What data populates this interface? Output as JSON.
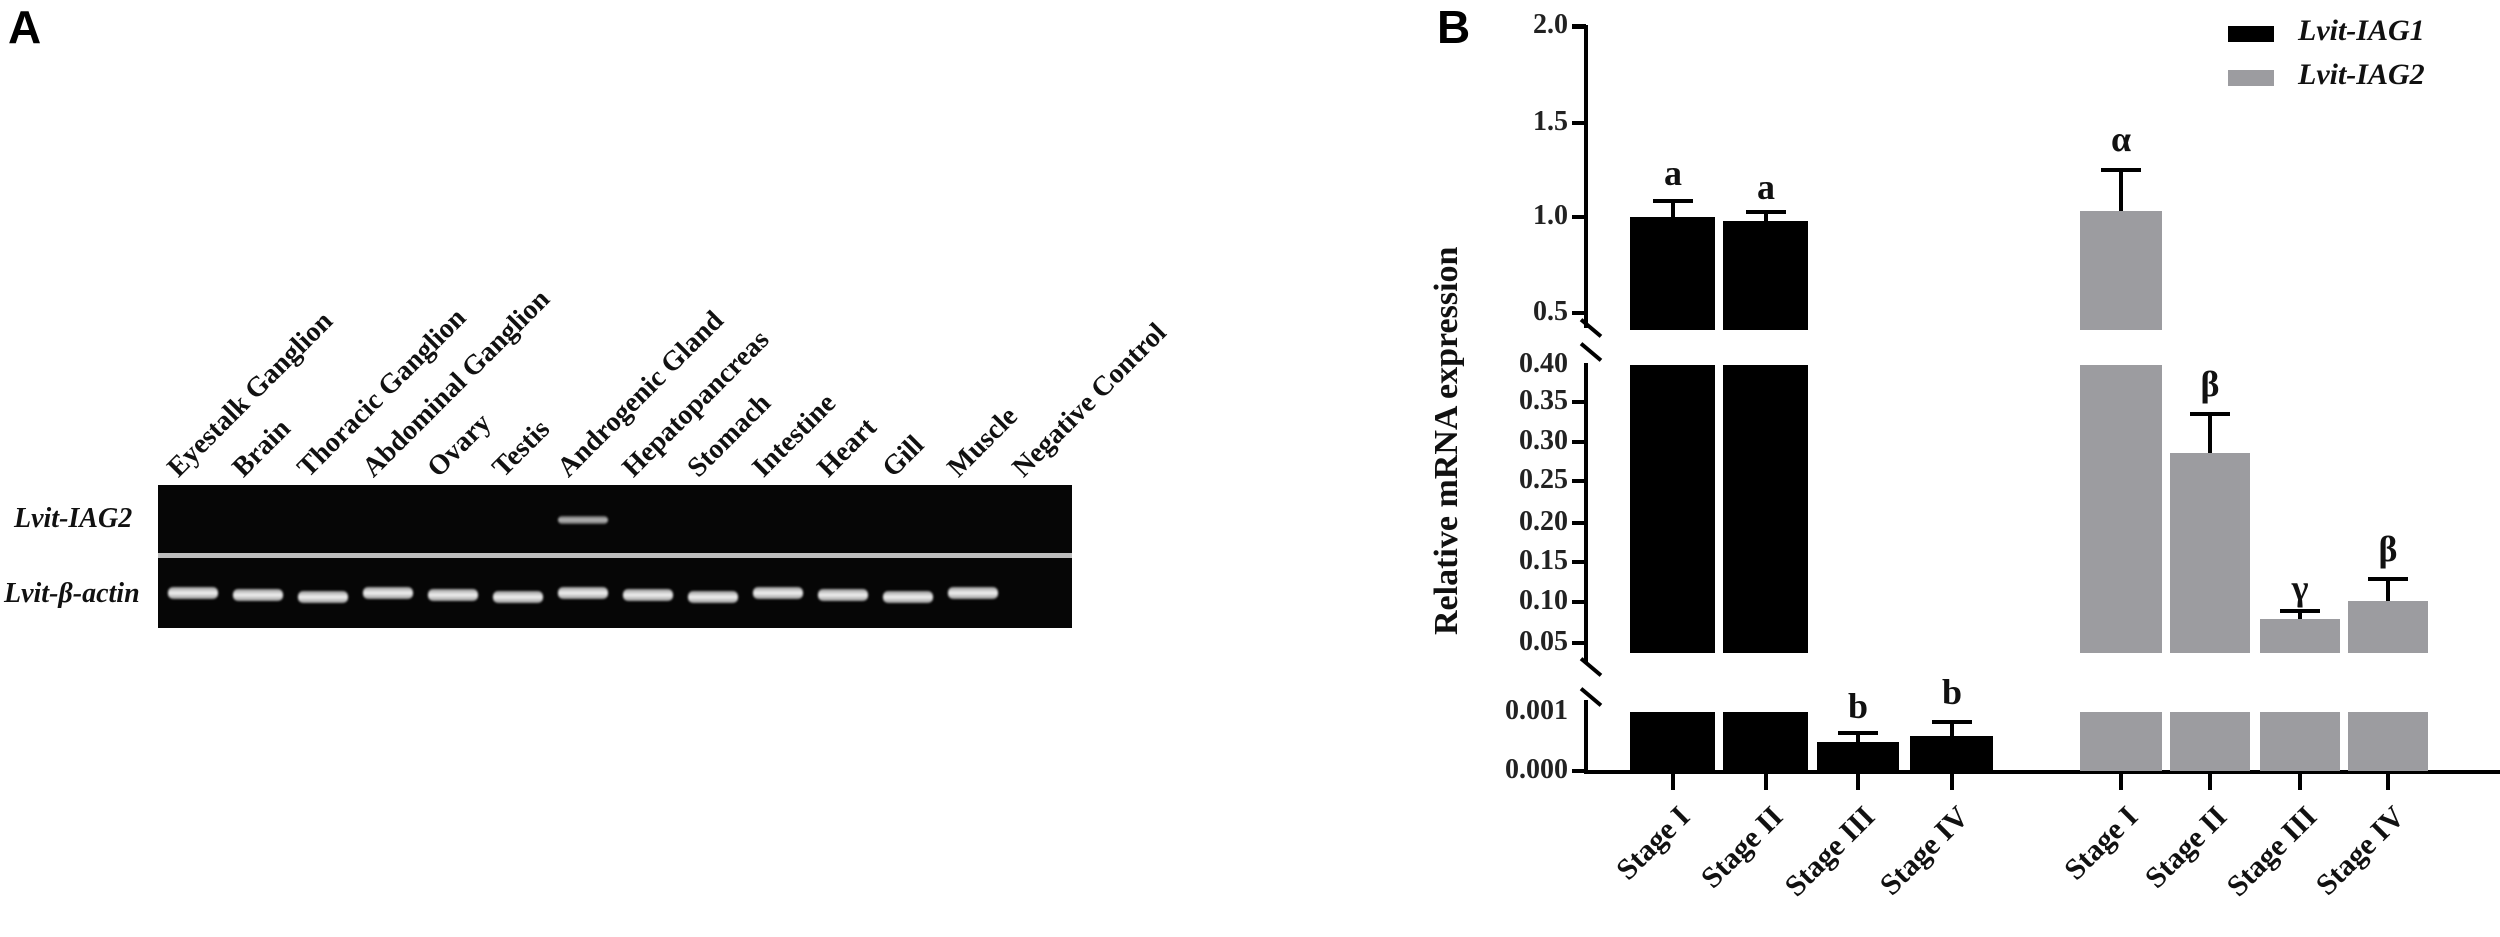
{
  "panel_a": {
    "letter": "A",
    "lanes": [
      "Eyestalk Ganglion",
      "Brain",
      "Thoracic Ganglion",
      "Abdominal Ganglion",
      "Ovary",
      "Testis",
      "Androgenic Gland",
      "Hepatopancreas",
      "Stomach",
      "Intestine",
      "Heart",
      "Gill",
      "Muscle",
      "Negative Control"
    ],
    "rows": [
      {
        "label": "Lvit-IAG2",
        "bands": [
          0,
          0,
          0,
          0,
          0,
          0,
          1,
          0,
          0,
          0,
          0,
          0,
          0,
          0
        ]
      },
      {
        "label": "Lvit-β-actin",
        "bands": [
          1,
          1,
          1,
          1,
          1,
          1,
          1,
          1,
          1,
          1,
          1,
          1,
          1,
          0
        ]
      }
    ]
  },
  "panel_b": {
    "letter": "B",
    "ylabel": "Relative mRNA expression",
    "yticks_upper": [
      "2.0",
      "1.5",
      "1.0",
      "0.5"
    ],
    "yticks_middle": [
      "0.40",
      "0.35",
      "0.30",
      "0.25",
      "0.20",
      "0.15",
      "0.10",
      "0.05"
    ],
    "yticks_lower": [
      "0.001",
      "0.000"
    ],
    "legend": [
      {
        "label": "Lvit-IAG1",
        "color": "#000000"
      },
      {
        "label": "Lvit-IAG2",
        "color": "#9c9ca0"
      }
    ],
    "xlabels": [
      "Stage I",
      "Stage II",
      "Stage III",
      "Stage IV",
      "Stage I",
      "Stage II",
      "Stage III",
      "Stage IV"
    ],
    "sig": [
      "a",
      "a",
      "b",
      "b",
      "α",
      "β",
      "γ",
      "β"
    ]
  },
  "chart_data": [
    {
      "type": "table",
      "title": "RT-PCR tissue distribution (gel)",
      "columns": [
        "Eyestalk Ganglion",
        "Brain",
        "Thoracic Ganglion",
        "Abdominal Ganglion",
        "Ovary",
        "Testis",
        "Androgenic Gland",
        "Hepatopancreas",
        "Stomach",
        "Intestine",
        "Heart",
        "Gill",
        "Muscle",
        "Negative Control"
      ],
      "rows": [
        {
          "gene": "Lvit-IAG2",
          "band_present": [
            0,
            0,
            0,
            0,
            0,
            0,
            1,
            0,
            0,
            0,
            0,
            0,
            0,
            0
          ]
        },
        {
          "gene": "Lvit-β-actin",
          "band_present": [
            1,
            1,
            1,
            1,
            1,
            1,
            1,
            1,
            1,
            1,
            1,
            1,
            1,
            0
          ]
        }
      ]
    },
    {
      "type": "bar",
      "title": "",
      "xlabel": "",
      "ylabel": "Relative mRNA expression",
      "categories": [
        "Stage I",
        "Stage II",
        "Stage III",
        "Stage IV"
      ],
      "y_axis_segments": [
        [
          0.0,
          0.001
        ],
        [
          0.05,
          0.4
        ],
        [
          0.5,
          2.0
        ]
      ],
      "legend_position": "top-right",
      "grid": false,
      "series": [
        {
          "name": "Lvit-IAG1",
          "color": "#000000",
          "values": [
            1.0,
            0.98,
            0.0005,
            0.0006
          ],
          "errors": [
            0.09,
            0.05,
            0.0002,
            0.0004
          ],
          "significance": [
            "a",
            "a",
            "b",
            "b"
          ]
        },
        {
          "name": "Lvit-IAG2",
          "color": "#9c9ca0",
          "values": [
            1.03,
            0.29,
            0.045,
            0.105
          ],
          "errors": [
            0.21,
            0.05,
            0.01,
            0.03
          ],
          "significance": [
            "α",
            "β",
            "γ",
            "β"
          ]
        }
      ]
    }
  ]
}
